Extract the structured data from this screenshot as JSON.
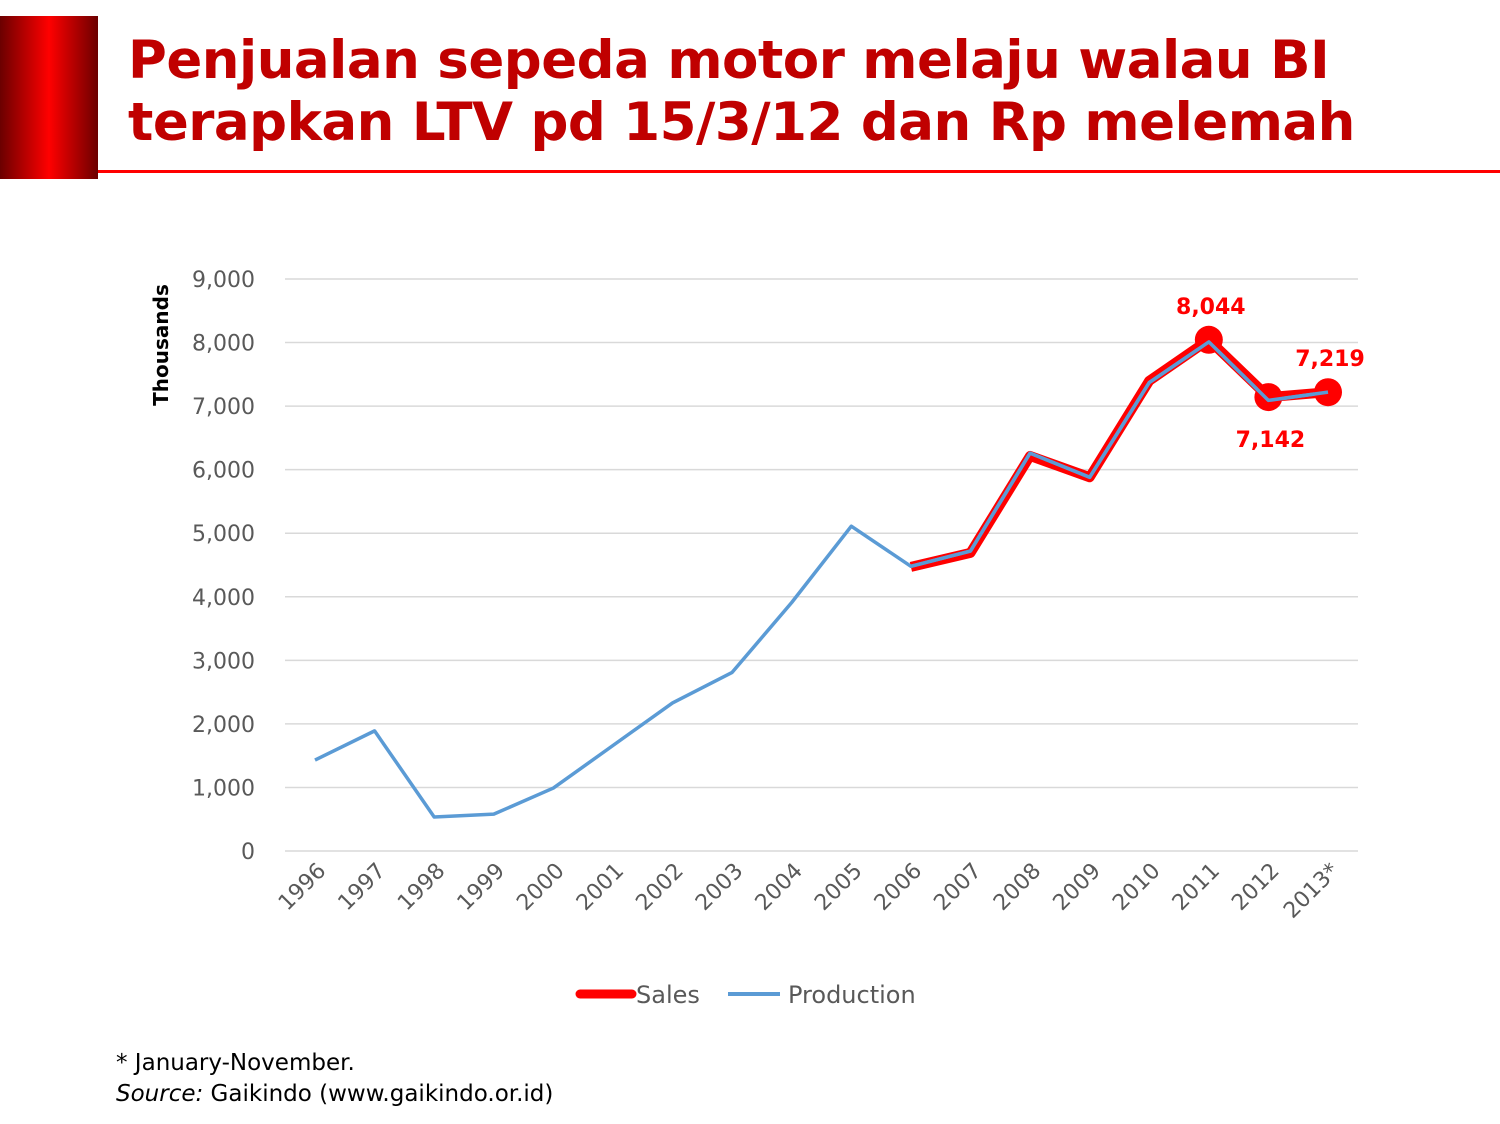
{
  "title": {
    "line1": "Penjualan sepeda motor melaju walau BI",
    "line2": "terapkan LTV pd 15/3/12 dan Rp melemah"
  },
  "colors": {
    "sales": "#ff0000",
    "production": "#5b9bd5",
    "title": "#c00000",
    "grid": "#d9d9d9"
  },
  "chart_data": {
    "type": "line",
    "ylabel": "Thousands",
    "ylim": [
      0,
      9000
    ],
    "yticks": [
      "0",
      "1,000",
      "2,000",
      "3,000",
      "4,000",
      "5,000",
      "6,000",
      "7,000",
      "8,000",
      "9,000"
    ],
    "ytick_values": [
      0,
      1000,
      2000,
      3000,
      4000,
      5000,
      6000,
      7000,
      8000,
      9000
    ],
    "categories": [
      "1996",
      "1997",
      "1998",
      "1999",
      "2000",
      "2001",
      "2002",
      "2003",
      "2004",
      "2005",
      "2006",
      "2007",
      "2008",
      "2009",
      "2010",
      "2011",
      "2012",
      "2013*"
    ],
    "grid": true,
    "legend_position": "bottom",
    "series": [
      {
        "name": "Sales",
        "values": [
          null,
          null,
          null,
          null,
          null,
          null,
          null,
          null,
          null,
          null,
          4470,
          4690,
          6216,
          5881,
          7398,
          8044,
          7142,
          7219
        ]
      },
      {
        "name": "Production",
        "values": [
          1430,
          1890,
          535,
          580,
          990,
          1660,
          2330,
          2810,
          3910,
          5110,
          4480,
          4720,
          6260,
          5880,
          7370,
          8010,
          7090,
          7220
        ]
      }
    ],
    "annotations": [
      {
        "category": "2011",
        "text": "8,044",
        "placement": "above"
      },
      {
        "category": "2012",
        "text": "7,142",
        "placement": "below"
      },
      {
        "category": "2013*",
        "text": "7,219",
        "placement": "above"
      }
    ]
  },
  "footnote": {
    "note": "* January-November.",
    "source_label": "Source:",
    "source_text": " Gaikindo (www.gaikindo.or.id)"
  }
}
